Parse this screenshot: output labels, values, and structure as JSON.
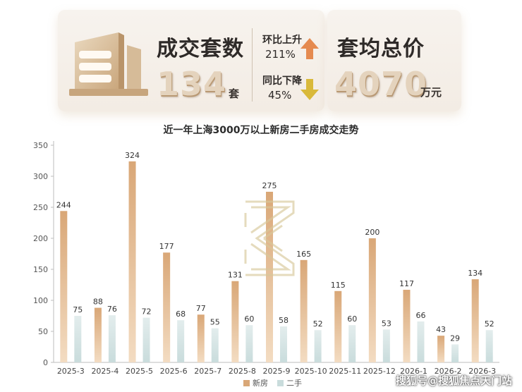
{
  "summary": {
    "deals_label": "成交套数",
    "deals_value": "134",
    "deals_unit": "套",
    "mom_label": "环比上升",
    "mom_value": "211%",
    "yoy_label": "同比下降",
    "yoy_value": "45%",
    "avg_label": "套均总价",
    "avg_value": "4070",
    "avg_unit": "万元"
  },
  "colors": {
    "new_house": "#d9a777",
    "second_hand": "#c9dcdc",
    "up_arrow": "#e58a4f",
    "down_arrow": "#d9b93a"
  },
  "watermark": "搜狐号@搜狐焦点天门站",
  "chart_data": {
    "type": "bar",
    "title": "近一年上海3000万以上新房二手房成交走势",
    "categories": [
      "2025-3",
      "2025-4",
      "2025-5",
      "2025-6",
      "2025-7",
      "2025-8",
      "2025-9",
      "2025-10",
      "2025-11",
      "2025-12",
      "2026-1",
      "2026-2",
      "2026-3"
    ],
    "series": [
      {
        "name": "新房",
        "values": [
          244,
          88,
          324,
          177,
          77,
          131,
          275,
          165,
          115,
          200,
          117,
          43,
          134
        ]
      },
      {
        "name": "二手",
        "values": [
          75,
          76,
          72,
          68,
          55,
          60,
          58,
          52,
          60,
          53,
          66,
          29,
          52
        ]
      }
    ],
    "ylim": [
      0,
      350
    ],
    "yticks": [
      0,
      50,
      100,
      150,
      200,
      250,
      300,
      350
    ],
    "legend_position": "bottom-center",
    "grid": false,
    "data_labels": true
  }
}
